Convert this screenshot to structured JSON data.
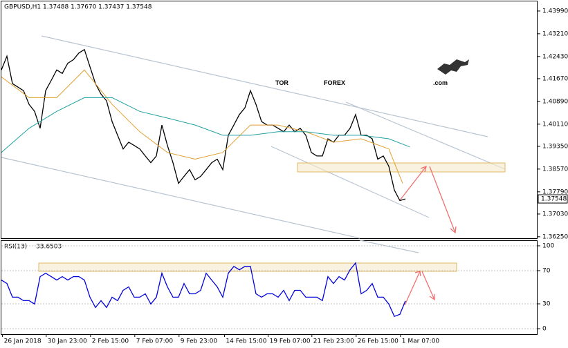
{
  "chart_data": [
    {
      "type": "line",
      "title": "GBPUSD,H1  1.37488 1.37670 1.37437 1.37548",
      "xlim": [
        0,
        97
      ],
      "xticks": [
        {
          "value": 0.2,
          "label": "26 Jan 2018"
        },
        {
          "value": 8.1,
          "label": "30 Jan 23:00"
        },
        {
          "value": 16.1,
          "label": "2 Feb 15:00"
        },
        {
          "value": 24.1,
          "label": "7 Feb 07:00"
        },
        {
          "value": 32.1,
          "label": "9 Feb 23:00"
        },
        {
          "value": 40.3,
          "label": "14 Feb 15:00"
        },
        {
          "value": 48.2,
          "label": "19 Feb 07:00"
        },
        {
          "value": 56.1,
          "label": "21 Feb 23:00"
        },
        {
          "value": 64.1,
          "label": "26 Feb 15:00"
        },
        {
          "value": 72.1,
          "label": "1 Mar 07:00"
        }
      ],
      "ylim": [
        1.362,
        1.4432
      ],
      "yticks": [
        {
          "value": 1.3625,
          "label": "1.36250"
        },
        {
          "value": 1.3703,
          "label": "1.37030"
        },
        {
          "value": 1.3779,
          "label": "1.37790"
        },
        {
          "value": 1.3857,
          "label": "1.38570"
        },
        {
          "value": 1.3935,
          "label": "1.39350"
        },
        {
          "value": 1.4011,
          "label": "1.40110"
        },
        {
          "value": 1.4089,
          "label": "1.40890"
        },
        {
          "value": 1.4167,
          "label": "1.41670"
        },
        {
          "value": 1.4243,
          "label": "1.42430"
        },
        {
          "value": 1.4321,
          "label": "1.43210"
        },
        {
          "value": 1.4399,
          "label": "1.43990"
        }
      ],
      "series": [
        {
          "color": "#000000",
          "values": [
            1.4197,
            1.4244,
            1.415,
            1.4138,
            1.4126,
            1.4079,
            1.4055,
            1.3997,
            1.4126,
            1.4161,
            1.4197,
            1.4185,
            1.422,
            1.4232,
            1.4255,
            1.4267,
            1.4208,
            1.415,
            1.4114,
            1.4091,
            1.402,
            1.3973,
            1.3926,
            1.3949,
            1.3938,
            1.3926,
            1.3902,
            1.3879,
            1.3902,
            1.4008,
            1.3938,
            1.3879,
            1.3808,
            1.3832,
            1.3855,
            1.382,
            1.3832,
            1.3855,
            1.3879,
            1.3891,
            1.3855,
            1.3973,
            1.4008,
            1.4044,
            1.4067,
            1.4126,
            1.4079,
            1.402,
            1.4008,
            1.4008,
            1.3997,
            1.3985,
            1.4008,
            1.3985,
            1.3997,
            1.3973,
            1.3914,
            1.3902,
            1.3902,
            1.3961,
            1.3949,
            1.3973,
            1.3973,
            1.3997,
            1.4044,
            1.3973,
            1.3973,
            1.3961,
            1.3891,
            1.3902,
            1.3867,
            1.3785,
            1.3749,
            1.37548
          ]
        },
        {
          "color": "#e0a030",
          "x": [
            0,
            5,
            10,
            15,
            20,
            25,
            30,
            35,
            40,
            45,
            50,
            55,
            60,
            65,
            70,
            72.5
          ],
          "values": [
            1.4173,
            1.4102,
            1.4102,
            1.4197,
            1.4079,
            1.3985,
            1.3914,
            1.3891,
            1.3914,
            1.4008,
            1.4008,
            1.3985,
            1.3949,
            1.3961,
            1.3926,
            1.3808
          ]
        },
        {
          "color": "#20a0a0",
          "x": [
            0,
            5,
            10,
            15,
            20,
            25,
            30,
            35,
            40,
            45,
            50,
            55,
            60,
            65,
            70,
            73.8
          ],
          "values": [
            1.3914,
            1.3997,
            1.4055,
            1.4102,
            1.4102,
            1.4055,
            1.4032,
            1.4008,
            1.3973,
            1.3973,
            1.3985,
            1.3985,
            1.3973,
            1.3973,
            1.3961,
            1.3933
          ]
        }
      ]
    },
    {
      "type": "line",
      "title": "RSI(13)",
      "ylim": [
        -6.6,
        105.8
      ],
      "yticks": [
        0,
        30,
        70,
        100
      ],
      "series": [
        {
          "color": "#0000dd",
          "values": [
            58.7,
            54.5,
            38.0,
            38.0,
            33.9,
            33.9,
            29.8,
            62.8,
            66.9,
            62.8,
            58.7,
            62.8,
            58.7,
            62.8,
            62.8,
            58.7,
            38.0,
            25.6,
            33.9,
            25.6,
            38.0,
            33.9,
            46.3,
            50.4,
            38.0,
            38.0,
            42.1,
            29.8,
            38.0,
            66.9,
            50.4,
            38.0,
            38.0,
            54.5,
            42.1,
            42.1,
            46.3,
            66.9,
            58.7,
            50.4,
            38.0,
            66.9,
            75.2,
            71.1,
            75.2,
            75.2,
            42.1,
            38.0,
            42.1,
            42.1,
            38.0,
            46.3,
            33.9,
            46.3,
            46.3,
            38.0,
            38.0,
            38.0,
            33.9,
            62.8,
            54.5,
            62.8,
            58.7,
            71.1,
            79.3,
            42.1,
            46.3,
            54.5,
            38.0,
            38.0,
            29.8,
            14.9,
            17.4,
            33.6503
          ]
        }
      ]
    }
  ],
  "watermark": {
    "prefix": "TOR",
    "brand": "FOREX",
    "suffix": ".com"
  }
}
